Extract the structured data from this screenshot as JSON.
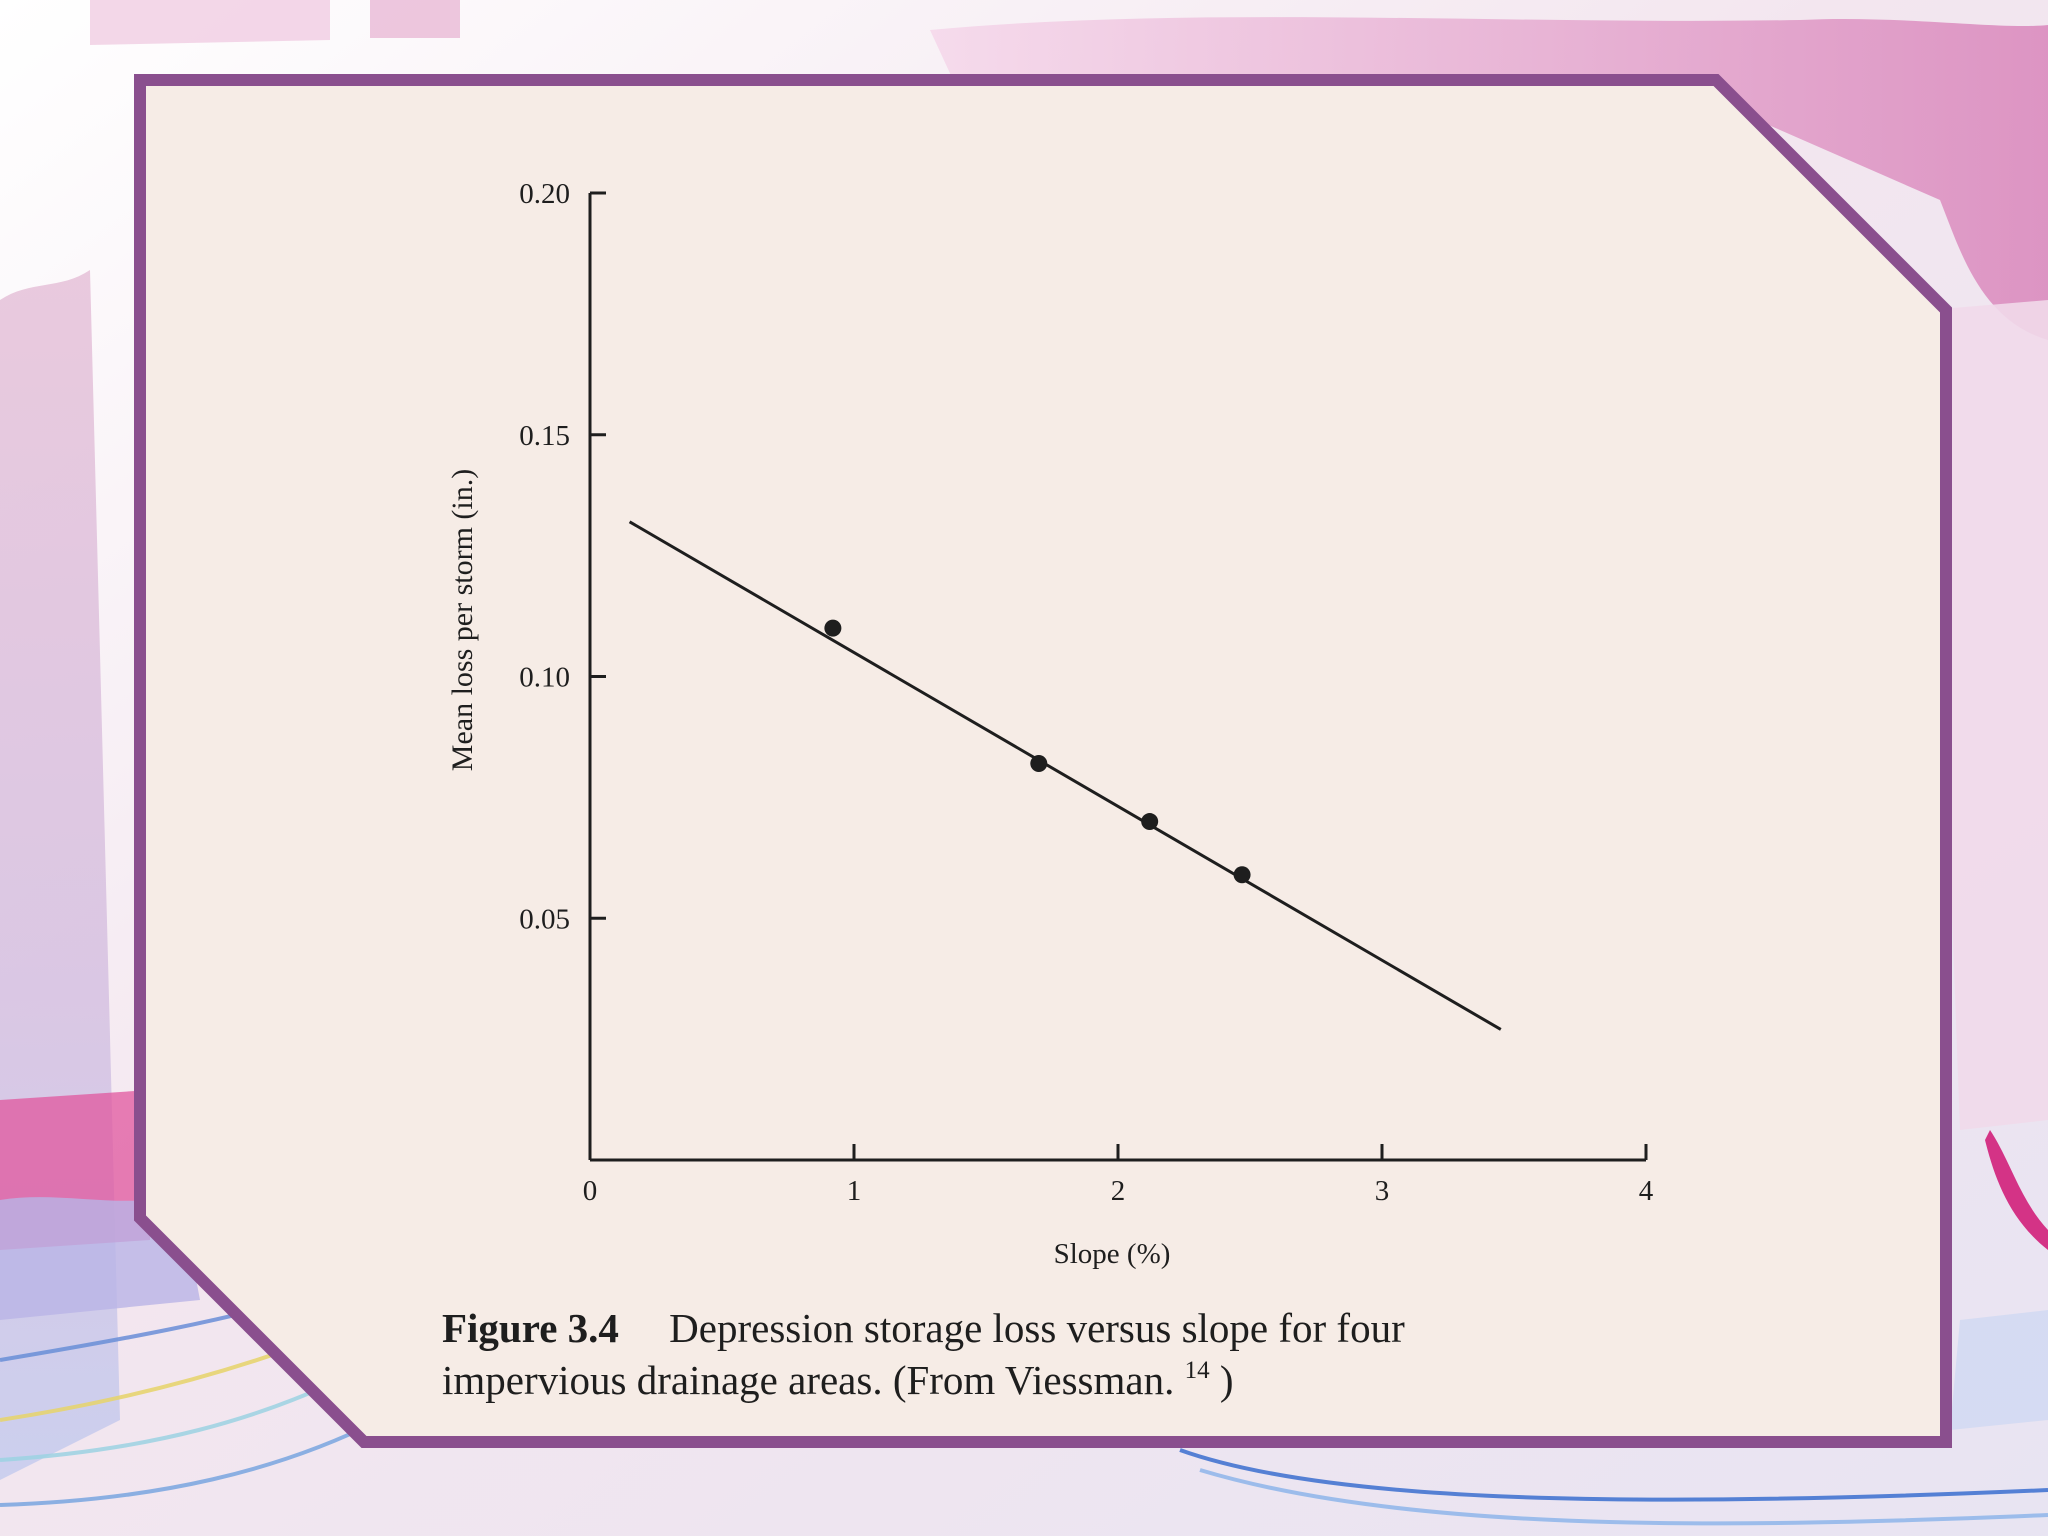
{
  "colors": {
    "frame_border": "#8a4f8e",
    "panel_fill": "#f6ece6",
    "ink": "#1e1e1e",
    "backdrop_pink": "#d88ab8",
    "backdrop_lilac": "#d9c6e0",
    "backdrop_blue": "#b8c4e8"
  },
  "chart_data": {
    "type": "scatter",
    "xlabel": "Slope (%)",
    "ylabel": "Mean loss per storm (in.)",
    "xlim": [
      0,
      4
    ],
    "ylim": [
      0,
      0.2
    ],
    "x_ticks": [
      {
        "value": 0,
        "label": "0"
      },
      {
        "value": 1,
        "label": "1"
      },
      {
        "value": 2,
        "label": "2"
      },
      {
        "value": 3,
        "label": "3"
      },
      {
        "value": 4,
        "label": "4"
      }
    ],
    "y_ticks": [
      {
        "value": 0.05,
        "label": "0.05"
      },
      {
        "value": 0.1,
        "label": "0.10"
      },
      {
        "value": 0.15,
        "label": "0.15"
      },
      {
        "value": 0.2,
        "label": "0.20"
      }
    ],
    "points": [
      {
        "x": 0.92,
        "y": 0.11
      },
      {
        "x": 1.7,
        "y": 0.082
      },
      {
        "x": 2.12,
        "y": 0.07
      },
      {
        "x": 2.47,
        "y": 0.059
      }
    ],
    "fit_line": {
      "x": [
        0.15,
        3.45
      ],
      "y": [
        0.132,
        0.027
      ]
    },
    "grid": false,
    "legend": "none"
  },
  "caption": {
    "label": "Figure 3.4",
    "text": "Depression storage loss versus slope for four",
    "text_line2_pre": "impervious drainage areas. (From Viessman.",
    "ref": "14",
    "text_line2_post": ")"
  }
}
